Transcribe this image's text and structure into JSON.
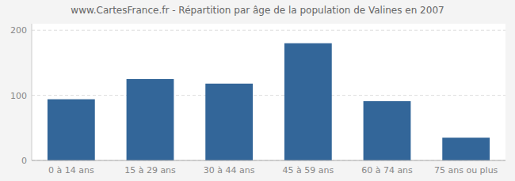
{
  "chart_data": {
    "type": "bar",
    "title": "www.CartesFrance.fr - Répartition par âge de la population de Valines en 2007",
    "categories": [
      "0 à 14 ans",
      "15 à 29 ans",
      "30 à 44 ans",
      "45 à 59 ans",
      "60 à 74 ans",
      "75 ans ou plus"
    ],
    "values": [
      94,
      125,
      118,
      180,
      91,
      35
    ],
    "color": "#336699",
    "ylim": [
      0,
      210
    ],
    "yticks": [
      0,
      100,
      200
    ],
    "grid": true
  }
}
